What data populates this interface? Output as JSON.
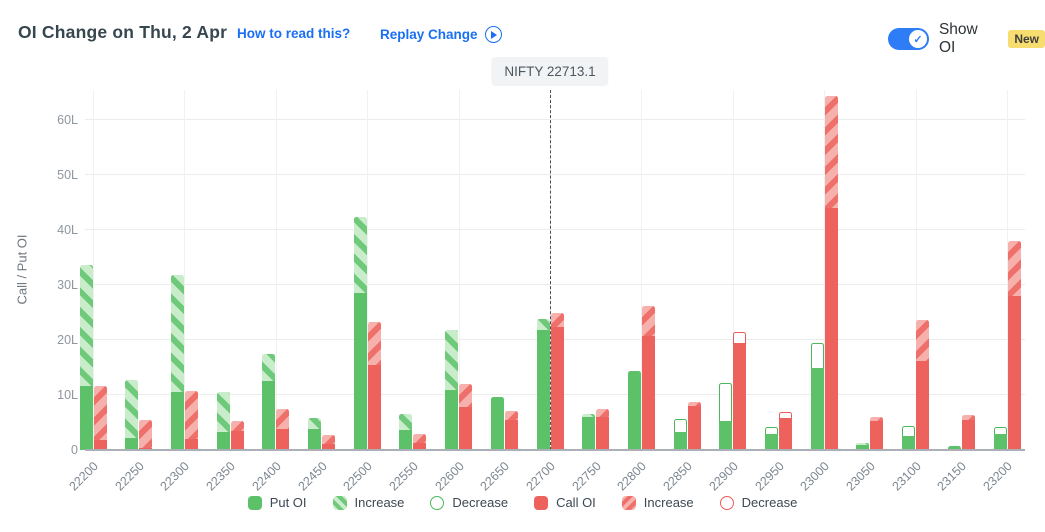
{
  "header": {
    "title": "OI Change on Thu, 2 Apr",
    "how_to_read_label": "How to read this?",
    "replay_label": "Replay Change",
    "show_oi_label": "Show OI",
    "new_badge": "New",
    "accent_color": "#1a6ff2",
    "toggle_on": true
  },
  "spot_label": "NIFTY 22713.1",
  "chart_data": {
    "type": "bar",
    "title": "OI Change on Thu, 2 Apr",
    "ylabel": "Call / Put OI",
    "unit": "lakh (L)",
    "ylim": [
      0,
      65.5
    ],
    "yticks": [
      {
        "v": 0,
        "label": "0"
      },
      {
        "v": 10,
        "label": "10L"
      },
      {
        "v": 20,
        "label": "20L"
      },
      {
        "v": 30,
        "label": "30L"
      },
      {
        "v": 40,
        "label": "40L"
      },
      {
        "v": 50,
        "label": "50L"
      },
      {
        "v": 60,
        "label": "60L"
      }
    ],
    "grid": true,
    "legend_position": "bottom",
    "legend": [
      {
        "label": "Put OI",
        "swatch": "green-solid",
        "shape": "square"
      },
      {
        "label": "Increase",
        "swatch": "green-hatch",
        "shape": "square"
      },
      {
        "label": "Decrease",
        "swatch": "green-outline",
        "shape": "circle"
      },
      {
        "label": "Call OI",
        "swatch": "red-solid",
        "shape": "square"
      },
      {
        "label": "Increase",
        "swatch": "red-hatch",
        "shape": "square"
      },
      {
        "label": "Decrease",
        "swatch": "red-outline",
        "shape": "circle"
      }
    ],
    "spot": {
      "label": "NIFTY 22713.1",
      "value": 22713.1,
      "at_strike_index": 10
    },
    "categories": [
      22200,
      22250,
      22300,
      22350,
      22400,
      22450,
      22500,
      22550,
      22600,
      22650,
      22700,
      22750,
      22800,
      22850,
      22900,
      22950,
      23000,
      23050,
      23100,
      23150,
      23200
    ],
    "series": [
      {
        "name": "Put OI",
        "side": "put",
        "bars": [
          {
            "base": 11.7,
            "change": 22.0,
            "change_type": "increase"
          },
          {
            "base": 2.2,
            "change": 10.6,
            "change_type": "increase"
          },
          {
            "base": 10.5,
            "change": 21.3,
            "change_type": "increase"
          },
          {
            "base": 3.2,
            "change": 7.3,
            "change_type": "increase"
          },
          {
            "base": 12.5,
            "change": 5.0,
            "change_type": "increase"
          },
          {
            "base": 3.9,
            "change": 2.0,
            "change_type": "increase"
          },
          {
            "base": 28.5,
            "change": 13.9,
            "change_type": "increase"
          },
          {
            "base": 3.7,
            "change": 2.8,
            "change_type": "increase"
          },
          {
            "base": 11.0,
            "change": 10.8,
            "change_type": "increase"
          },
          {
            "base": 9.7,
            "change": 0,
            "change_type": "none"
          },
          {
            "base": 21.8,
            "change": 2.1,
            "change_type": "increase"
          },
          {
            "base": 6.0,
            "change": 0.5,
            "change_type": "increase"
          },
          {
            "base": 14.3,
            "change": 0,
            "change_type": "none"
          },
          {
            "base": 3.3,
            "change": 2.4,
            "change_type": "decrease"
          },
          {
            "base": 5.3,
            "change": 6.9,
            "change_type": "decrease"
          },
          {
            "base": 3.0,
            "change": 1.2,
            "change_type": "decrease"
          },
          {
            "base": 15.0,
            "change": 4.5,
            "change_type": "decrease"
          },
          {
            "base": 0.9,
            "change": 0.4,
            "change_type": "increase"
          },
          {
            "base": 2.6,
            "change": 1.7,
            "change_type": "decrease"
          },
          {
            "base": 0.8,
            "change": 0,
            "change_type": "none"
          },
          {
            "base": 3.0,
            "change": 1.2,
            "change_type": "decrease"
          }
        ]
      },
      {
        "name": "Call OI",
        "side": "call",
        "bars": [
          {
            "base": 1.9,
            "change": 9.7,
            "change_type": "increase"
          },
          {
            "base": 0.4,
            "change": 5.1,
            "change_type": "increase"
          },
          {
            "base": 2.0,
            "change": 8.8,
            "change_type": "increase"
          },
          {
            "base": 3.4,
            "change": 1.8,
            "change_type": "increase"
          },
          {
            "base": 3.8,
            "change": 3.7,
            "change_type": "increase"
          },
          {
            "base": 1.1,
            "change": 1.7,
            "change_type": "increase"
          },
          {
            "base": 15.5,
            "change": 7.8,
            "change_type": "increase"
          },
          {
            "base": 1.3,
            "change": 1.7,
            "change_type": "increase"
          },
          {
            "base": 7.8,
            "change": 4.2,
            "change_type": "increase"
          },
          {
            "base": 5.5,
            "change": 1.6,
            "change_type": "increase"
          },
          {
            "base": 22.4,
            "change": 2.6,
            "change_type": "increase"
          },
          {
            "base": 6.0,
            "change": 1.5,
            "change_type": "increase"
          },
          {
            "base": 20.8,
            "change": 5.4,
            "change_type": "increase"
          },
          {
            "base": 8.0,
            "change": 0.8,
            "change_type": "increase"
          },
          {
            "base": 19.5,
            "change": 1.9,
            "change_type": "decrease"
          },
          {
            "base": 5.8,
            "change": 1.2,
            "change_type": "decrease"
          },
          {
            "base": 44.0,
            "change": 20.4,
            "change_type": "increase"
          },
          {
            "base": 5.3,
            "change": 0.7,
            "change_type": "increase"
          },
          {
            "base": 16.2,
            "change": 7.4,
            "change_type": "increase"
          },
          {
            "base": 5.4,
            "change": 0.9,
            "change_type": "increase"
          },
          {
            "base": 28.0,
            "change": 10.0,
            "change_type": "increase"
          }
        ]
      }
    ],
    "colors": {
      "put_solid": "#5dc169",
      "put_hatch_light": "#c9edcb",
      "put_hatch_stripe": "#6fc97a",
      "put_outline": "#4db75a",
      "call_solid": "#ee625e",
      "call_hatch_light": "#f6b1ad",
      "call_hatch_stripe": "#ef6f6a",
      "call_outline": "#ed5c58",
      "gridline": "#ececec",
      "axis_line": "#aab0b6",
      "tick_text": "#8f969e",
      "spot_line": "#43505b"
    }
  }
}
